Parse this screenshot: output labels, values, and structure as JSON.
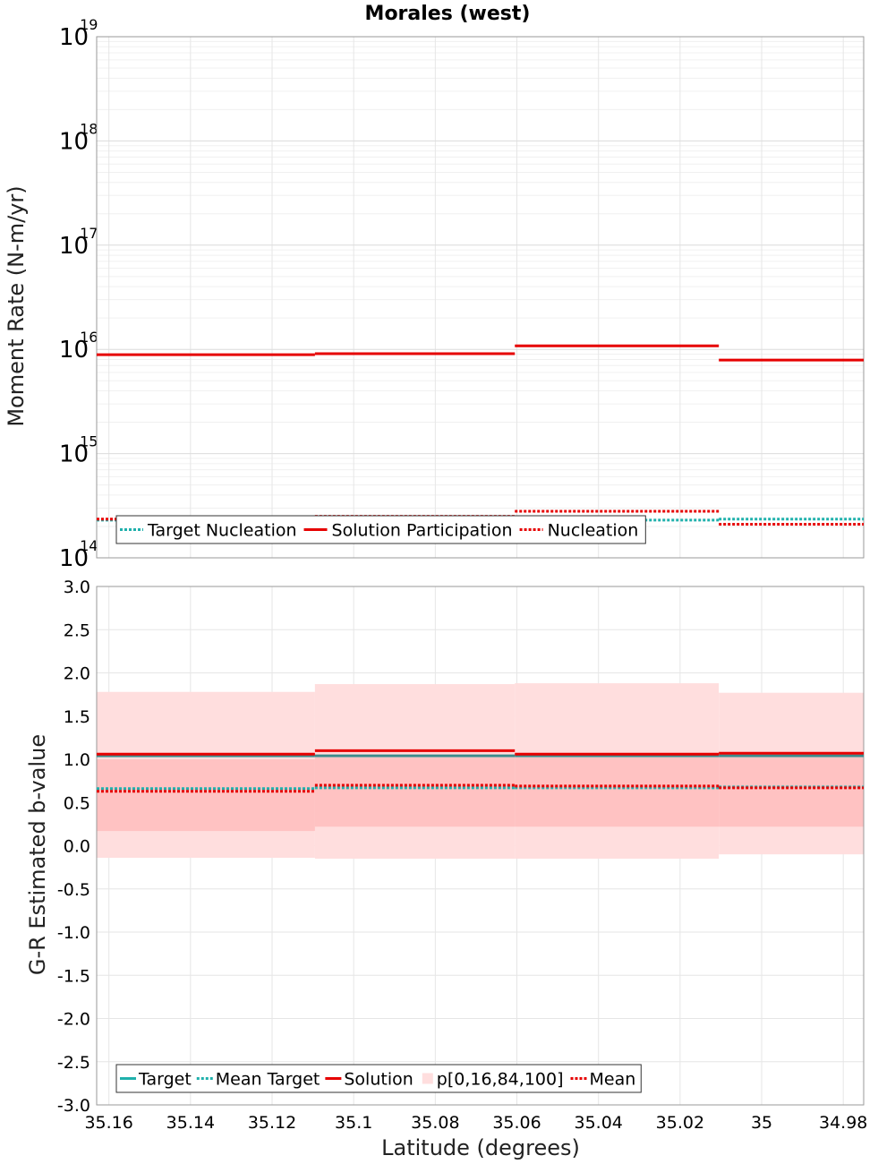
{
  "title": "Morales (west)",
  "xlabel": "Latitude (degrees)",
  "colors": {
    "target": "#1fb0ac",
    "solution": "#e60000",
    "mean": "#e60000",
    "band_outer": "#ffdede",
    "band_inner": "#ffc2c2",
    "target_line_dark": "#3e8a8a"
  },
  "chart_data": [
    {
      "type": "line",
      "step": true,
      "ylabel": "Moment Rate (N-m/yr)",
      "yscale": "log",
      "ylim": [
        100000000000000.0,
        1e+19
      ],
      "xlim": [
        35.163,
        34.975
      ],
      "x_reversed": true,
      "x_ticks": [
        35.16,
        35.14,
        35.12,
        35.1,
        35.08,
        35.06,
        35.04,
        35.02,
        35.0,
        34.98
      ],
      "y_tick_labels": [
        {
          "base": "10",
          "exp": "14",
          "value": 100000000000000.0
        },
        {
          "base": "10",
          "exp": "15",
          "value": 1000000000000000.0
        },
        {
          "base": "10",
          "exp": "16",
          "value": 1e+16
        },
        {
          "base": "10",
          "exp": "17",
          "value": 1e+17
        },
        {
          "base": "10",
          "exp": "18",
          "value": 1e+18
        },
        {
          "base": "10",
          "exp": "19",
          "value": 1e+19
        }
      ],
      "grid": true,
      "legend_position": "bottom-left",
      "bin_edges": [
        35.163,
        35.1095,
        35.0605,
        35.0105,
        34.975
      ],
      "series": [
        {
          "name": "Target Nucleation",
          "style": "dotted",
          "color": "target",
          "values": [
            230000000000000.0,
            230000000000000.0,
            230000000000000.0,
            235000000000000.0
          ]
        },
        {
          "name": "Solution Participation",
          "style": "solid",
          "color": "solution",
          "values": [
            8900000000000000.0,
            9100000000000000.0,
            1.08e+16,
            7900000000000000.0
          ]
        },
        {
          "name": "Nucleation",
          "style": "dotted",
          "color": "mean",
          "values": [
            235000000000000.0,
            250000000000000.0,
            280000000000000.0,
            210000000000000.0
          ]
        }
      ]
    },
    {
      "type": "line",
      "step": true,
      "ylabel": "G-R Estimated b-value",
      "ylim": [
        -3.0,
        3.0
      ],
      "xlim": [
        35.163,
        34.975
      ],
      "x_reversed": true,
      "y_ticks": [
        "3.0",
        "2.5",
        "2.0",
        "1.5",
        "1.0",
        "0.5",
        "0.0",
        "-0.5",
        "-1.0",
        "-1.5",
        "-2.0",
        "-2.5",
        "-3.0"
      ],
      "grid": true,
      "legend_position": "bottom-left",
      "bin_edges": [
        35.163,
        35.1095,
        35.0605,
        35.0105,
        34.975
      ],
      "series": [
        {
          "name": "Target",
          "style": "solid",
          "color": "target",
          "values": [
            1.04,
            1.04,
            1.04,
            1.04
          ]
        },
        {
          "name": "Mean Target",
          "style": "dotted",
          "color": "target",
          "values": [
            0.66,
            0.67,
            0.67,
            0.68
          ]
        },
        {
          "name": "Solution",
          "style": "solid",
          "color": "solution",
          "values": [
            1.06,
            1.1,
            1.06,
            1.07
          ]
        },
        {
          "name": "p[0,16,84,100]",
          "style": "band",
          "color": "band_outer",
          "p0": [
            -0.14,
            -0.15,
            -0.15,
            -0.1
          ],
          "p16": [
            0.17,
            0.22,
            0.22,
            0.22
          ],
          "p84": [
            1.0,
            1.02,
            1.02,
            1.02
          ],
          "p100": [
            1.78,
            1.87,
            1.88,
            1.77
          ]
        },
        {
          "name": "Mean",
          "style": "dotted",
          "color": "mean",
          "values": [
            0.63,
            0.7,
            0.69,
            0.67
          ]
        }
      ]
    }
  ]
}
